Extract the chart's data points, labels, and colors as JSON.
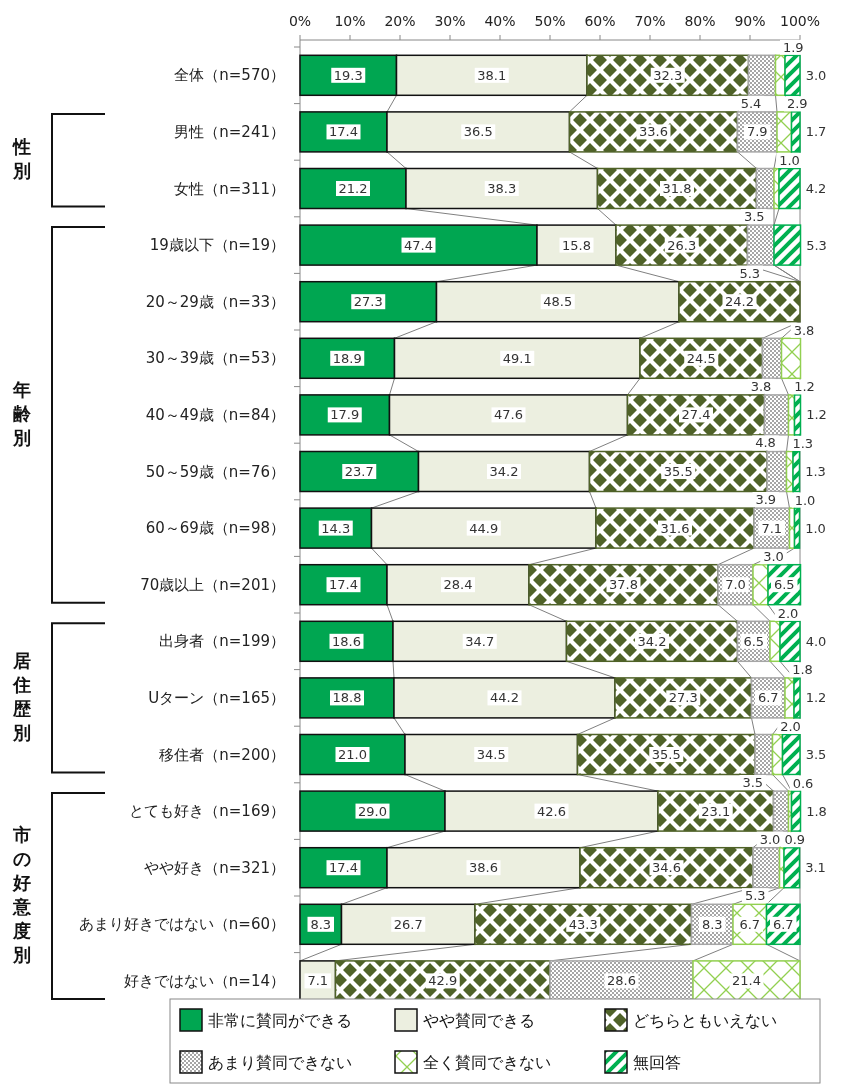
{
  "chart_data": {
    "type": "bar",
    "orientation": "horizontal",
    "stacked": true,
    "legend": "bottom",
    "xlim": [
      0,
      100
    ],
    "xticks": [
      {
        "value": 0,
        "label": "0%"
      },
      {
        "value": 10,
        "label": "10%"
      },
      {
        "value": 20,
        "label": "20%"
      },
      {
        "value": 30,
        "label": "30%"
      },
      {
        "value": 40,
        "label": "40%"
      },
      {
        "value": 50,
        "label": "50%"
      },
      {
        "value": 60,
        "label": "60%"
      },
      {
        "value": 70,
        "label": "70%"
      },
      {
        "value": 80,
        "label": "80%"
      },
      {
        "value": 90,
        "label": "90%"
      },
      {
        "value": 100,
        "label": "100%"
      }
    ],
    "categories": [
      "全体（n=570）",
      "男性（n=241）",
      "女性（n=311）",
      "19歳以下（n=19）",
      "20～29歳（n=33）",
      "30～39歳（n=53）",
      "40～49歳（n=84）",
      "50～59歳（n=76）",
      "60～69歳（n=98）",
      "70歳以上（n=201）",
      "出身者（n=199）",
      "Uターン（n=165）",
      "移住者（n=200）",
      "とても好き（n=169）",
      "やや好き（n=321）",
      "あまり好きではない（n=60）",
      "好きではない（n=14）"
    ],
    "series": [
      {
        "name": "非常に賛同ができる",
        "color": "#00a651",
        "values": [
          19.3,
          17.4,
          21.2,
          47.4,
          27.3,
          18.9,
          17.9,
          23.7,
          14.3,
          17.4,
          18.6,
          18.8,
          21.0,
          29.0,
          17.4,
          8.3,
          null
        ],
        "value_labels": [
          "19.3",
          "17.4",
          "21.2",
          "47.4",
          "27.3",
          "18.9",
          "17.9",
          "23.7",
          "14.3",
          "17.4",
          "18.6",
          "18.8",
          "21.0",
          "29.0",
          "17.4",
          "8.3",
          null
        ]
      },
      {
        "name": "やや賛同できる",
        "color": "#ecefe0",
        "values": [
          38.1,
          36.5,
          38.3,
          15.8,
          48.5,
          49.1,
          47.6,
          34.2,
          44.9,
          28.4,
          34.7,
          44.2,
          34.5,
          42.6,
          38.6,
          26.7,
          7.1
        ],
        "value_labels": [
          "38.1",
          "36.5",
          "38.3",
          "15.8",
          "48.5",
          "49.1",
          "47.6",
          "34.2",
          "44.9",
          "28.4",
          "34.7",
          "44.2",
          "34.5",
          "42.6",
          "38.6",
          "26.7",
          "7.1"
        ]
      },
      {
        "name": "どちらともいえない",
        "color": "#4f6228",
        "values": [
          32.3,
          33.6,
          31.8,
          26.3,
          24.2,
          24.5,
          27.4,
          35.5,
          31.6,
          37.8,
          34.2,
          27.3,
          35.5,
          23.1,
          34.6,
          43.3,
          42.9
        ],
        "value_labels": [
          "32.3",
          "33.6",
          "31.8",
          "26.3",
          "24.2",
          "24.5",
          "27.4",
          "35.5",
          "31.6",
          "37.8",
          "34.2",
          "27.3",
          "35.5",
          "23.1",
          "34.6",
          "43.3",
          "42.9"
        ]
      },
      {
        "name": "あまり賛同できない",
        "color": "#a6a6a6",
        "values": [
          5.4,
          7.9,
          3.5,
          5.3,
          null,
          3.8,
          4.8,
          3.9,
          7.1,
          7.0,
          6.5,
          6.7,
          3.5,
          3.0,
          5.3,
          8.3,
          28.6
        ],
        "value_labels": [
          "5.4",
          "7.9",
          "3.5",
          "5.3",
          null,
          "3.8",
          "4.8",
          "3.9",
          "7.1",
          "7.0",
          "6.5",
          "6.7",
          "3.5",
          "3.0",
          "5.3",
          "8.3",
          "28.6"
        ]
      },
      {
        "name": "全く賛同できない",
        "color": "#92d050",
        "values": [
          1.9,
          2.9,
          1.0,
          null,
          null,
          3.8,
          1.2,
          1.3,
          1.0,
          3.0,
          2.0,
          1.8,
          2.0,
          0.6,
          0.9,
          6.7,
          21.4
        ],
        "value_labels": [
          "1.9",
          "2.9",
          "1.0",
          null,
          null,
          "3.8",
          "1.2",
          "1.3",
          "1.0",
          "3.0",
          "2.0",
          "1.8",
          "2.0",
          "0.6",
          "0.9",
          "6.7",
          "21.4"
        ]
      },
      {
        "name": "無回答",
        "color": "#00b050",
        "values": [
          3.0,
          1.7,
          4.2,
          5.3,
          null,
          null,
          1.2,
          1.3,
          1.0,
          6.5,
          4.0,
          1.2,
          3.5,
          1.8,
          3.1,
          6.7,
          null
        ],
        "value_labels": [
          "3.0",
          "1.7",
          "4.2",
          "5.3",
          null,
          null,
          "1.2",
          "1.3",
          "1.0",
          "6.5",
          "4.0",
          "1.2",
          "3.5",
          "1.8",
          "3.1",
          "6.7",
          null
        ]
      }
    ],
    "annotations": [
      "性別",
      "年齢別",
      "居住歴別",
      "市の好意度別"
    ]
  }
}
